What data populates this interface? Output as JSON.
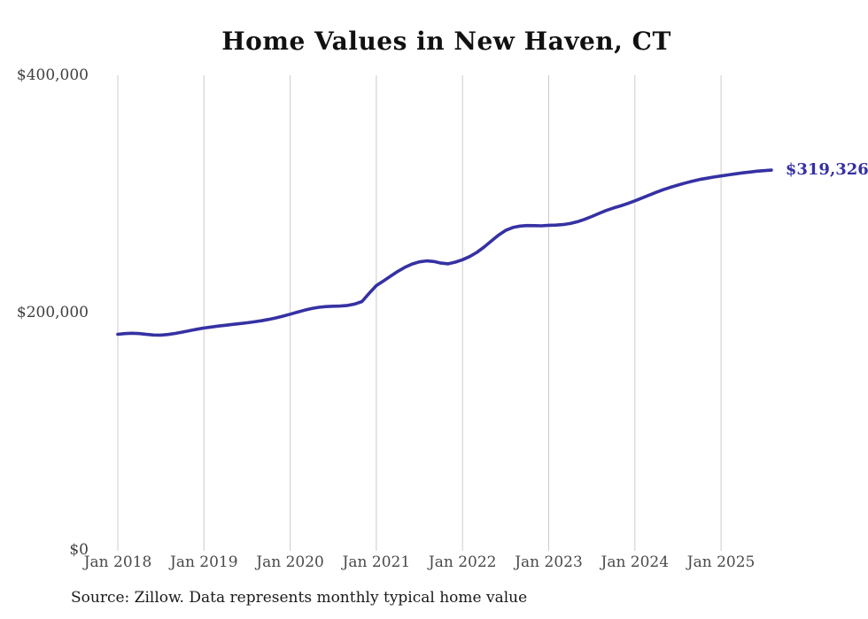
{
  "title": "Home Values in New Haven, CT",
  "source_note": "Source: Zillow. Data represents monthly typical home value",
  "end_label": "$319,326",
  "colors": {
    "line": "#3531a3",
    "grid": "#cccccc",
    "x_tick_text": "#4a4a4a",
    "y_tick_text": "#3f3f3f",
    "title_text": "#111111",
    "background": "#ffffff"
  },
  "chart_data": {
    "type": "line",
    "title": "Home Values in New Haven, CT",
    "xlabel": "",
    "ylabel": "",
    "x_start_month": "2018-01",
    "x_end_month": "2025-08",
    "x_tick_labels": [
      "Jan 2018",
      "Jan 2019",
      "Jan 2020",
      "Jan 2021",
      "Jan 2022",
      "Jan 2023",
      "Jan 2024",
      "Jan 2025"
    ],
    "y_ticks": [
      0,
      200000,
      400000
    ],
    "y_tick_labels": [
      "$0",
      "$200,000",
      "$400,000"
    ],
    "ylim": [
      0,
      400000
    ],
    "grid": "vertical-only",
    "legend": "none",
    "end_value": 319326,
    "series": [
      {
        "name": "Monthly typical home value",
        "values": [
          181000,
          181600,
          181900,
          181600,
          180900,
          180400,
          180300,
          180800,
          181700,
          182800,
          184000,
          185200,
          186300,
          187100,
          187900,
          188600,
          189300,
          190000,
          190700,
          191500,
          192400,
          193500,
          194800,
          196300,
          197900,
          199600,
          201300,
          202700,
          203700,
          204300,
          204600,
          204800,
          205300,
          206500,
          208600,
          215500,
          222000,
          226000,
          230000,
          234000,
          237500,
          240200,
          242000,
          242800,
          242300,
          241000,
          240400,
          241800,
          243800,
          246500,
          250000,
          254500,
          259500,
          264500,
          268500,
          271000,
          272200,
          272600,
          272500,
          272400,
          272800,
          273000,
          273400,
          274300,
          275800,
          277800,
          280200,
          282800,
          285300,
          287400,
          289200,
          291200,
          293400,
          295800,
          298300,
          300700,
          302900,
          304900,
          306700,
          308400,
          310000,
          311400,
          312500,
          313500,
          314400,
          315300,
          316200,
          317000,
          317700,
          318400,
          318900,
          319326
        ]
      }
    ]
  }
}
